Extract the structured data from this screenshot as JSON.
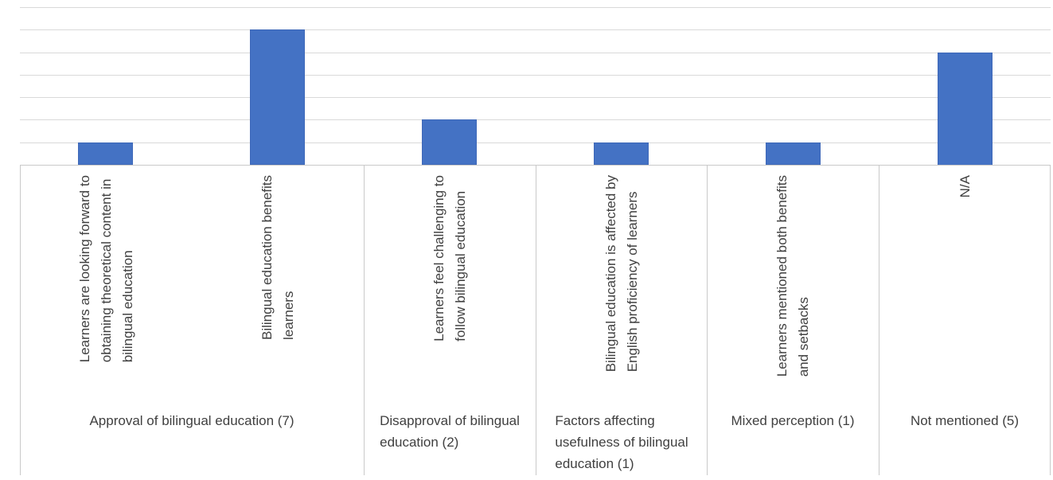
{
  "figure": {
    "background": "#FFFFFF"
  },
  "chart_data": {
    "type": "bar",
    "title": "",
    "xlabel": "",
    "ylabel": "",
    "ylim": [
      0,
      7
    ],
    "yticks": [
      0,
      1,
      2,
      3,
      4,
      5,
      6,
      7
    ],
    "grid": true,
    "legend": false,
    "bar_color": "#4472C4",
    "bar_border_color": "#3E68B9",
    "gridline_color": "#D9D9D9",
    "axis_box_color": "#C9C9C9",
    "text_color": "#404040",
    "categories": [
      "Learners are looking forward to obtaining theoretical content in bilingual education",
      "Bilingual education benefits learners",
      "Learners feel challenging to follow bilingual education",
      "Bilingual education is affected by English proficiency of learners",
      "Learners mentioned both benefits and setbacks",
      "N/A"
    ],
    "categories_display": [
      "Learners are looking forward to\nobtaining theoretical content in\nbilingual education",
      "Bilingual education benefits\nlearners",
      "Learners feel challenging to\nfollow bilingual education",
      "Bilingual education is affected by\nEnglish proficiency of learners",
      "Learners mentioned both benefits\nand setbacks",
      "N/A"
    ],
    "values": [
      1,
      6,
      2,
      1,
      1,
      5
    ],
    "groups": [
      {
        "label": "Approval of bilingual education (7)",
        "display": "Approval of bilingual education (7)",
        "span": 2
      },
      {
        "label": "Disapproval of bilingual education (2)",
        "display": "Disapproval of bilingual\neducation (2)",
        "span": 1
      },
      {
        "label": "Factors affecting usefulness of bilingual education (1)",
        "display": "Factors affecting\nusefulness of bilingual\neducation (1)",
        "span": 1
      },
      {
        "label": "Mixed perception (1)",
        "display": "Mixed perception (1)",
        "span": 1
      },
      {
        "label": "Not mentioned (5)",
        "display": "Not mentioned (5)",
        "span": 1
      }
    ]
  }
}
